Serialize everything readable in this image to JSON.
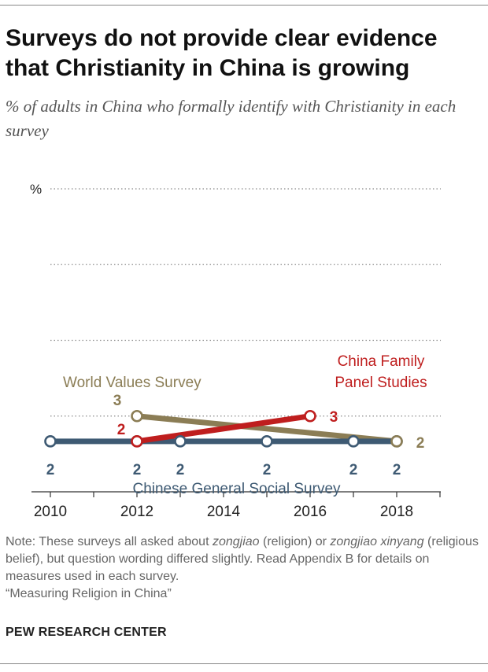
{
  "title": "Surveys do not provide clear evidence that Christianity in China is growing",
  "subtitle": "% of adults in China who formally identify with Christianity in each survey",
  "note": {
    "p1": "Note: These surveys all asked about ",
    "t1": "zongjiao",
    "p2": " (religion) or ",
    "t2": "zongjiao xinyang",
    "p3": " (religious belief), but question wording differed slightly. Read Appendix B for details on measures used in each survey.",
    "p4": "“Measuring Religion in China”"
  },
  "source": "PEW RESEARCH CENTER",
  "chart_data": {
    "type": "line",
    "y_unit_label": "%",
    "xlim": [
      2010,
      2019
    ],
    "ylim": [
      0,
      12
    ],
    "x_ticks": [
      2010,
      2012,
      2014,
      2016,
      2018
    ],
    "grid": true,
    "series": [
      {
        "name": "Chinese General Social Survey",
        "color": "#3e5a73",
        "x": [
          2010,
          2012,
          2013,
          2015,
          2017,
          2018
        ],
        "y": [
          2,
          2,
          2,
          2,
          2,
          2
        ],
        "labels": [
          "2",
          "2",
          "2",
          "2",
          "2",
          "2"
        ]
      },
      {
        "name": "World Values Survey",
        "color": "#8b7d55",
        "x": [
          2012,
          2018
        ],
        "y": [
          3,
          2
        ],
        "labels": [
          "3",
          "2"
        ]
      },
      {
        "name": "China Family Panel Studies",
        "color": "#bf1e1e",
        "x": [
          2012,
          2016
        ],
        "y": [
          2,
          3
        ],
        "labels": [
          "2",
          "3"
        ]
      }
    ]
  }
}
